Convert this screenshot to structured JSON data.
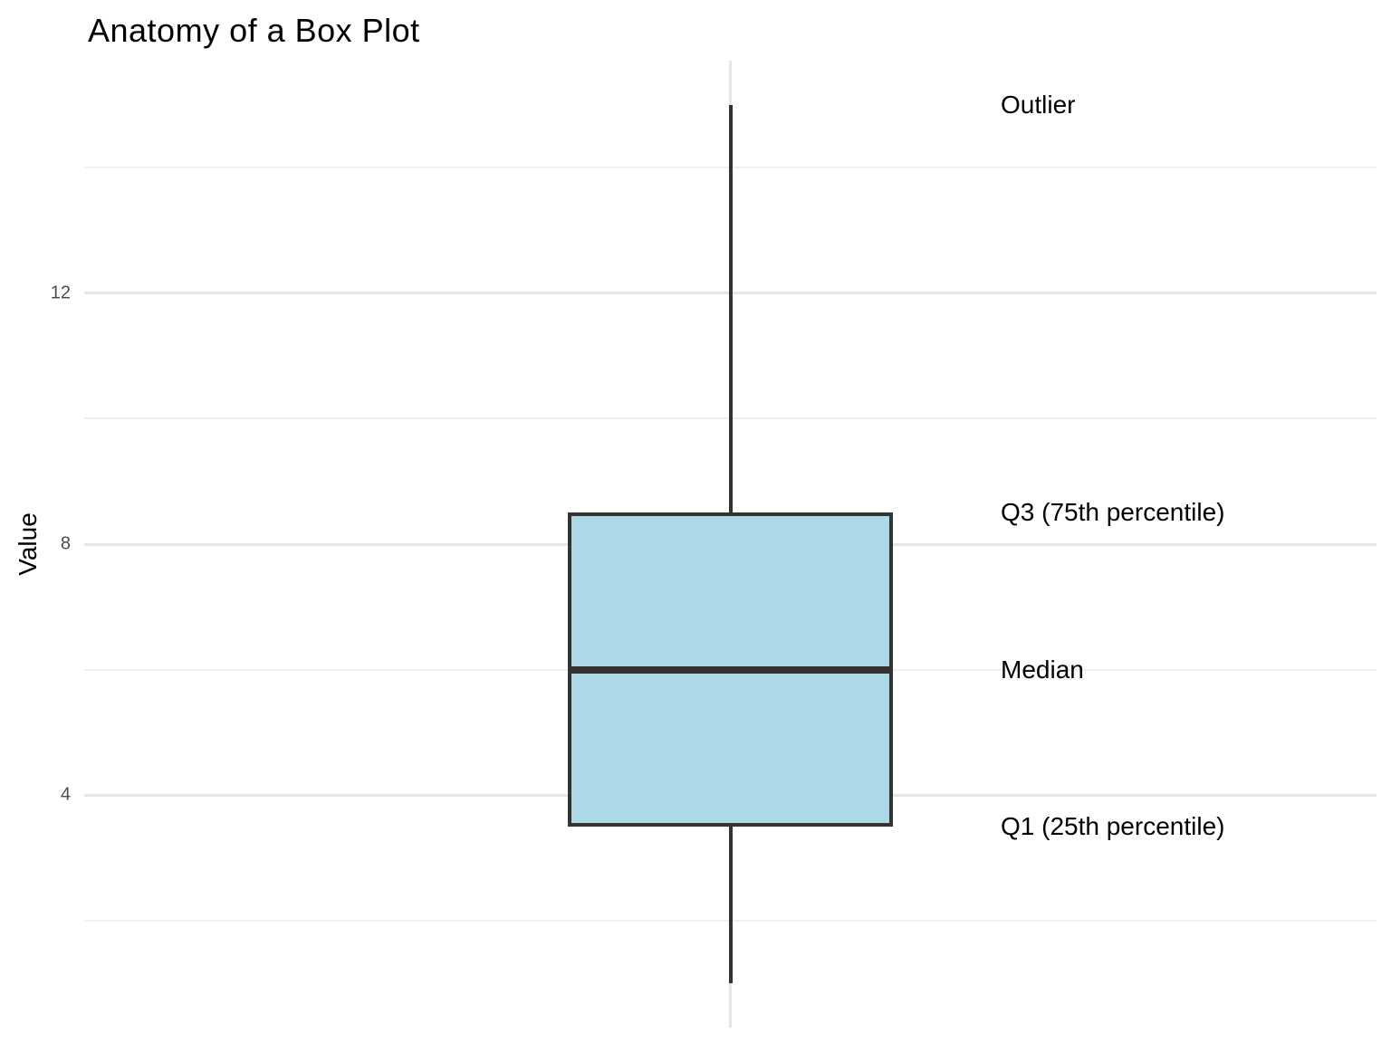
{
  "chart_data": {
    "type": "boxplot",
    "title": "Anatomy of a Box Plot",
    "xlabel": "",
    "ylabel": "Value",
    "ylim": [
      0.3,
      15.7
    ],
    "y_major_ticks": [
      4,
      8,
      12
    ],
    "y_minor_ticks": [
      2,
      6,
      10,
      14
    ],
    "grid": "on",
    "legend": "none",
    "series": [
      {
        "name": "box",
        "lower_whisker": 1,
        "q1": 3.5,
        "median": 6,
        "q3": 8.5,
        "upper_line_end": 15,
        "outlier": 15
      }
    ],
    "annotations": [
      {
        "label": "Outlier",
        "value": 15
      },
      {
        "label": "Q3 (75th percentile)",
        "value": 8.5
      },
      {
        "label": "Median",
        "value": 6
      },
      {
        "label": "Q1 (25th percentile)",
        "value": 3.5
      }
    ],
    "colors": {
      "box_fill": "#ADD8E6",
      "box_stroke": "#333333",
      "grid_major": "#E6E6E6",
      "grid_minor": "#EFEFEF",
      "tick_label": "#4D4D4D",
      "text": "#000000",
      "background": "#FFFFFF"
    }
  }
}
